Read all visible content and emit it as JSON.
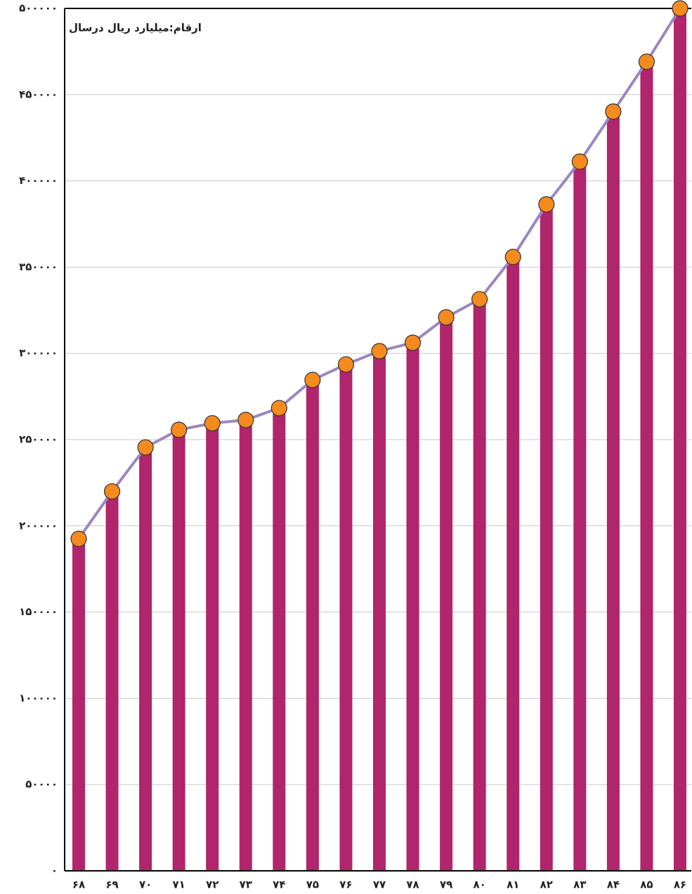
{
  "chart_data": {
    "type": "bar",
    "title": "ارقام:میلیارد ریال درسال",
    "categories": [
      "۶۸",
      "۶۹",
      "۷۰",
      "۷۱",
      "۷۲",
      "۷۳",
      "۷۴",
      "۷۵",
      "۷۶",
      "۷۷",
      "۷۸",
      "۷۹",
      "۸۰",
      "۸۱",
      "۸۲",
      "۸۳",
      "۸۴",
      "۸۵",
      "۸۶"
    ],
    "series": [
      {
        "color": "#b0256b",
        "line_color": "#9b87c0",
        "marker_color": "#f58a1f",
        "values": [
          192500,
          220000,
          245500,
          255700,
          259500,
          261400,
          268300,
          284600,
          293600,
          301300,
          306200,
          320900,
          331400,
          355900,
          386400,
          411200,
          440200,
          469100,
          500000
        ]
      }
    ],
    "ylim": [
      0,
      500000
    ],
    "yticks": [
      {
        "value": 0,
        "label": "۰"
      },
      {
        "value": 50000,
        "label": "۵۰۰۰۰"
      },
      {
        "value": 100000,
        "label": "۱۰۰۰۰۰"
      },
      {
        "value": 150000,
        "label": "۱۵۰۰۰۰"
      },
      {
        "value": 200000,
        "label": "۲۰۰۰۰۰"
      },
      {
        "value": 250000,
        "label": "۲۵۰۰۰۰"
      },
      {
        "value": 300000,
        "label": "۳۰۰۰۰۰"
      },
      {
        "value": 350000,
        "label": "۳۵۰۰۰۰"
      },
      {
        "value": 400000,
        "label": "۴۰۰۰۰۰"
      },
      {
        "value": 450000,
        "label": "۴۵۰۰۰۰"
      },
      {
        "value": 500000,
        "label": "۵۰۰۰۰۰"
      }
    ],
    "grid": true
  }
}
